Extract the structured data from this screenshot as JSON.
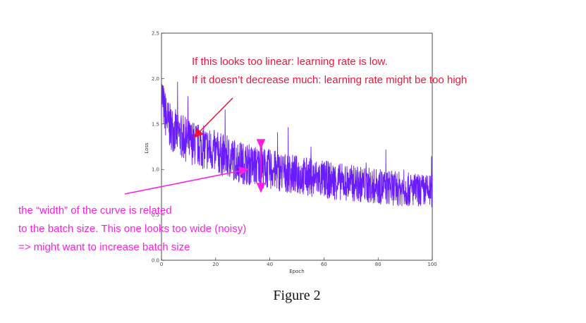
{
  "chart_data": {
    "type": "line",
    "title": "",
    "xlabel": "Epoch",
    "ylabel": "Loss",
    "xlim": [
      0,
      100
    ],
    "ylim": [
      0,
      2.5
    ],
    "xticks": [
      "0",
      "20",
      "40",
      "60",
      "80",
      "100"
    ],
    "yticks": [
      "0.0",
      "0.5",
      "1.0",
      "1.5",
      "2.0",
      "2.5"
    ],
    "grid": false,
    "series": [
      {
        "color": "#6a1bff",
        "x": [
          0,
          1,
          2,
          3,
          5,
          8,
          10,
          15,
          20,
          25,
          30,
          40,
          50,
          60,
          70,
          80,
          90,
          100
        ],
        "y": [
          1.85,
          1.65,
          1.55,
          1.48,
          1.42,
          1.35,
          1.31,
          1.25,
          1.19,
          1.13,
          1.07,
          1.0,
          0.94,
          0.89,
          0.85,
          0.81,
          0.78,
          0.76
        ],
        "noise_amplitude": 0.18
      }
    ],
    "annotations": [
      {
        "id": "red",
        "color": "#f0143c",
        "lines": [
          "If this looks too linear: learning rate is low.",
          "If it doesn’t decrease much: learning rate might be too high"
        ]
      },
      {
        "id": "magenta",
        "color": "#ff1ee0",
        "lines": [
          "the “width” of the curve is related",
          "to the batch size. This one looks too wide (noisy)",
          "=> might want to increase batch size"
        ]
      }
    ]
  },
  "caption": "Figure 2"
}
